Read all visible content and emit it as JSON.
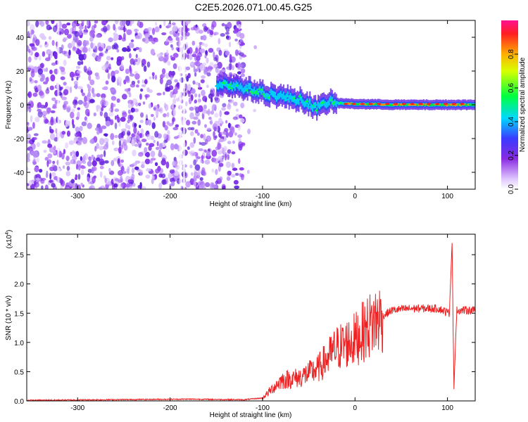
{
  "title": "C2E5.2026.071.00.45.G25",
  "chart_data": [
    {
      "type": "heatmap",
      "xlabel": "Height of straight line (km)",
      "ylabel": "Frequency (Hz)",
      "xlim": [
        -355,
        130
      ],
      "ylim": [
        -50,
        50
      ],
      "xticks": [
        -300,
        -200,
        -100,
        0,
        100
      ],
      "yticks": [
        -40,
        -20,
        0,
        20,
        40
      ],
      "colorbar": {
        "label": "Normalized spectral amplitude",
        "range": [
          0,
          1
        ],
        "ticks": [
          0.0,
          0.2,
          0.4,
          0.6,
          0.8
        ]
      },
      "ridge": [
        {
          "x": -140,
          "y": 12
        },
        {
          "x": -120,
          "y": 10
        },
        {
          "x": -100,
          "y": 7
        },
        {
          "x": -80,
          "y": 5
        },
        {
          "x": -60,
          "y": 3
        },
        {
          "x": -40,
          "y": -2
        },
        {
          "x": -30,
          "y": 2
        },
        {
          "x": -20,
          "y": 1
        },
        {
          "x": 0,
          "y": 0.5
        },
        {
          "x": 50,
          "y": 0
        },
        {
          "x": 100,
          "y": 0
        },
        {
          "x": 130,
          "y": 0
        }
      ]
    },
    {
      "type": "line",
      "xlabel": "Height of straight line (km)",
      "ylabel": "SNR (10 * v/v)",
      "yscale_note": "(x10",
      "yscale_exp": "4",
      "xlim": [
        -355,
        130
      ],
      "ylim": [
        0,
        2.85
      ],
      "xticks": [
        -300,
        -200,
        -100,
        0,
        100
      ],
      "yticks": [
        0.0,
        0.5,
        1.0,
        1.5,
        2.0,
        2.5
      ],
      "color": "#ee2222",
      "envelope": [
        {
          "x": -355,
          "y": 0.01
        },
        {
          "x": -180,
          "y": 0.03
        },
        {
          "x": -120,
          "y": 0.02
        },
        {
          "x": -100,
          "y": 0.05
        },
        {
          "x": -80,
          "y": 0.35
        },
        {
          "x": -60,
          "y": 0.4
        },
        {
          "x": -40,
          "y": 0.55
        },
        {
          "x": -20,
          "y": 0.9
        },
        {
          "x": 0,
          "y": 1.05
        },
        {
          "x": 20,
          "y": 1.35
        },
        {
          "x": 40,
          "y": 1.55
        },
        {
          "x": 60,
          "y": 1.58
        },
        {
          "x": 90,
          "y": 1.58
        },
        {
          "x": 102,
          "y": 1.5
        },
        {
          "x": 105,
          "y": 2.7
        },
        {
          "x": 107,
          "y": 0.2
        },
        {
          "x": 110,
          "y": 1.55
        },
        {
          "x": 130,
          "y": 1.55
        }
      ]
    }
  ]
}
